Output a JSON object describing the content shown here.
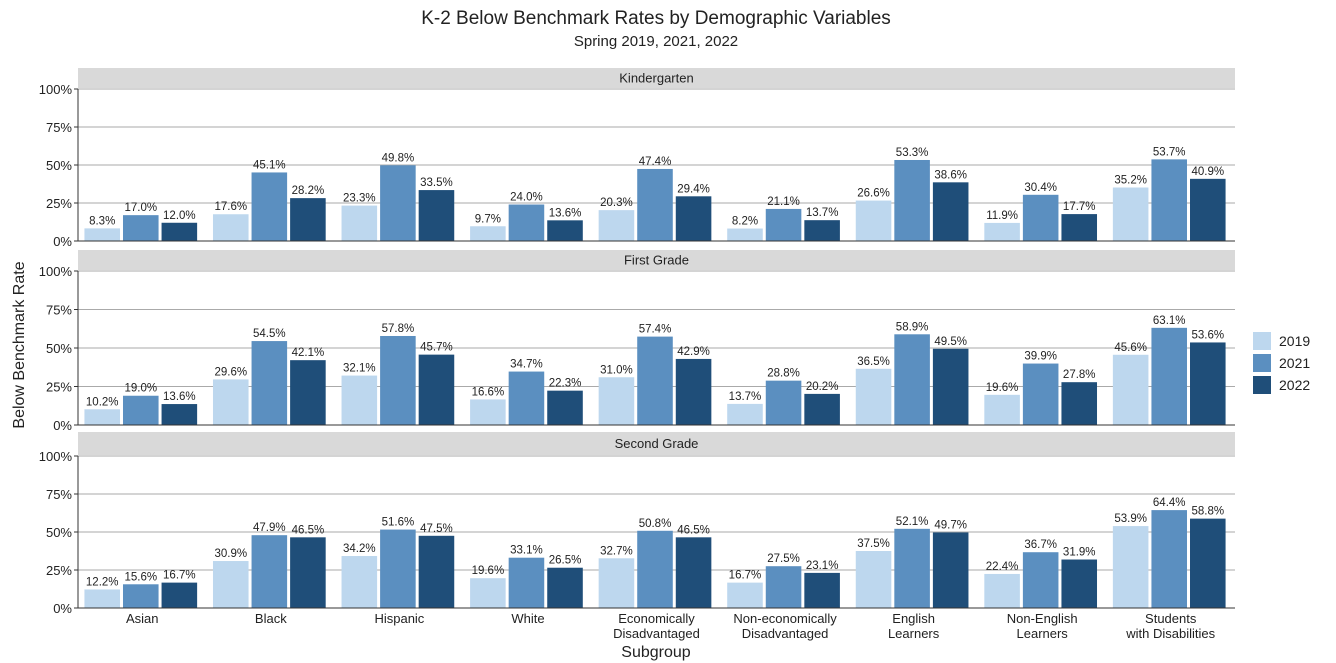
{
  "chart_data": {
    "type": "bar",
    "title": "K-2 Below Benchmark Rates by Demographic Variables",
    "subtitle": "Spring 2019, 2021, 2022",
    "xlabel": "Subgroup",
    "ylabel": "Below Benchmark Rate",
    "categories": [
      "Asian",
      "Black",
      "Hispanic",
      "White",
      "Economically\nDisadvantaged",
      "Non-economically\nDisadvantaged",
      "English\nLearners",
      "Non-English\nLearners",
      "Students\nwith Disabilities"
    ],
    "series": [
      {
        "name": "2019",
        "color": "#bdd7ee"
      },
      {
        "name": "2021",
        "color": "#5b8fc0"
      },
      {
        "name": "2022",
        "color": "#1f4e79"
      }
    ],
    "ylim": [
      0,
      100
    ],
    "yticks": [
      {
        "value": 0,
        "label": "0%"
      },
      {
        "value": 25,
        "label": "25%"
      },
      {
        "value": 50,
        "label": "50%"
      },
      {
        "value": 75,
        "label": "75%"
      },
      {
        "value": 100,
        "label": "100%"
      }
    ],
    "grid": true,
    "legend": "right",
    "panels": [
      {
        "title": "Kindergarten",
        "series": [
          {
            "values": [
              8.3,
              17.6,
              23.3,
              9.7,
              20.3,
              8.2,
              26.6,
              11.9,
              35.2
            ],
            "value_labels": [
              "8.3%",
              "17.6%",
              "23.3%",
              "9.7%",
              "20.3%",
              "8.2%",
              "26.6%",
              "11.9%",
              "35.2%"
            ]
          },
          {
            "values": [
              17.0,
              45.1,
              49.8,
              24.0,
              47.4,
              21.1,
              53.3,
              30.4,
              53.7
            ],
            "value_labels": [
              "17.0%",
              "45.1%",
              "49.8%",
              "24.0%",
              "47.4%",
              "21.1%",
              "53.3%",
              "30.4%",
              "53.7%"
            ]
          },
          {
            "values": [
              12.0,
              28.2,
              33.5,
              13.6,
              29.4,
              13.7,
              38.6,
              17.7,
              40.9
            ],
            "value_labels": [
              "12.0%",
              "28.2%",
              "33.5%",
              "13.6%",
              "29.4%",
              "13.7%",
              "38.6%",
              "17.7%",
              "40.9%"
            ]
          }
        ]
      },
      {
        "title": "First Grade",
        "series": [
          {
            "values": [
              10.2,
              29.6,
              32.1,
              16.6,
              31.0,
              13.7,
              36.5,
              19.6,
              45.6
            ],
            "value_labels": [
              "10.2%",
              "29.6%",
              "32.1%",
              "16.6%",
              "31.0%",
              "13.7%",
              "36.5%",
              "19.6%",
              "45.6%"
            ]
          },
          {
            "values": [
              19.0,
              54.5,
              57.8,
              34.7,
              57.4,
              28.8,
              58.9,
              39.9,
              63.1
            ],
            "value_labels": [
              "19.0%",
              "54.5%",
              "57.8%",
              "34.7%",
              "57.4%",
              "28.8%",
              "58.9%",
              "39.9%",
              "63.1%"
            ]
          },
          {
            "values": [
              13.6,
              42.1,
              45.7,
              22.3,
              42.9,
              20.2,
              49.5,
              27.8,
              53.6
            ],
            "value_labels": [
              "13.6%",
              "42.1%",
              "45.7%",
              "22.3%",
              "42.9%",
              "20.2%",
              "49.5%",
              "27.8%",
              "53.6%"
            ]
          }
        ]
      },
      {
        "title": "Second Grade",
        "series": [
          {
            "values": [
              12.2,
              30.9,
              34.2,
              19.6,
              32.7,
              16.7,
              37.5,
              22.4,
              53.9
            ],
            "value_labels": [
              "12.2%",
              "30.9%",
              "34.2%",
              "19.6%",
              "32.7%",
              "16.7%",
              "37.5%",
              "22.4%",
              "53.9%"
            ]
          },
          {
            "values": [
              15.6,
              47.9,
              51.6,
              33.1,
              50.8,
              27.5,
              52.1,
              36.7,
              64.4
            ],
            "value_labels": [
              "15.6%",
              "47.9%",
              "51.6%",
              "33.1%",
              "50.8%",
              "27.5%",
              "52.1%",
              "36.7%",
              "64.4%"
            ]
          },
          {
            "values": [
              16.7,
              46.5,
              47.5,
              26.5,
              46.5,
              23.1,
              49.7,
              31.9,
              58.8
            ],
            "value_labels": [
              "16.7%",
              "46.5%",
              "47.5%",
              "26.5%",
              "46.5%",
              "23.1%",
              "49.7%",
              "31.9%",
              "58.8%"
            ]
          }
        ]
      }
    ]
  }
}
